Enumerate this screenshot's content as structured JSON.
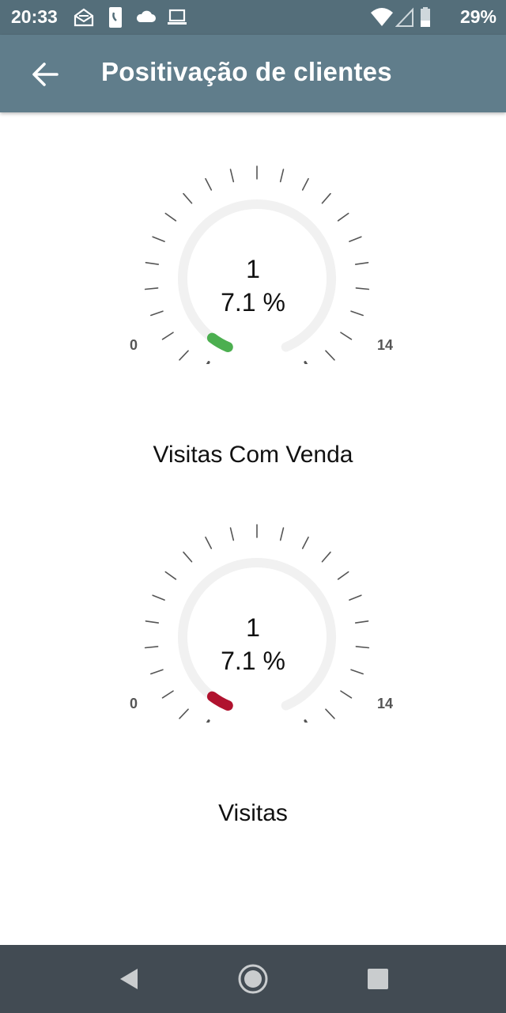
{
  "status_bar": {
    "time": "20:33",
    "battery": "29%",
    "icons": [
      "envelope-open-icon",
      "phone-icon",
      "cloud-icon",
      "laptop-icon",
      "wifi-icon",
      "signal-icon",
      "battery-icon"
    ]
  },
  "app_bar": {
    "title": "Positivação de clientes",
    "back_icon": "arrow-left-icon",
    "color": "#607d8b"
  },
  "gauges": [
    {
      "title": "Visitas Com Venda",
      "value": "1",
      "percent_text": "7.1 %",
      "percent": 7.1,
      "min": "0",
      "max": "14",
      "indicator_color": "#4caf50"
    },
    {
      "title": "Visitas",
      "value": "1",
      "percent_text": "7.1 %",
      "percent": 7.1,
      "min": "0",
      "max": "14",
      "indicator_color": "#b0122e"
    }
  ],
  "nav_bar": {
    "buttons": [
      "back-triangle-icon",
      "home-circle-icon",
      "recents-square-icon"
    ]
  }
}
